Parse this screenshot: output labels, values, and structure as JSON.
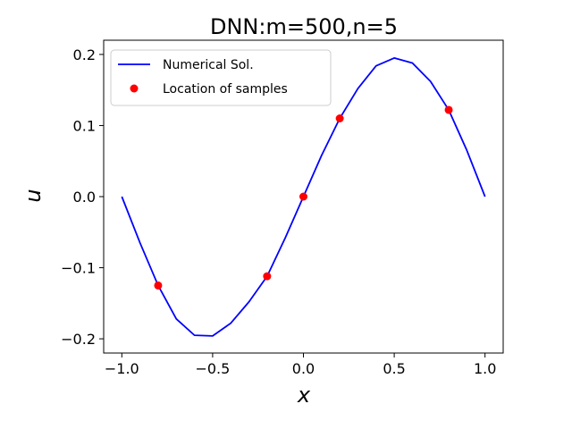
{
  "chart_data": {
    "type": "line",
    "title": "DNN:m=500,n=5",
    "xlabel": "x",
    "ylabel": "u",
    "xlim": [
      -1.1,
      1.1
    ],
    "ylim": [
      -0.22,
      0.22
    ],
    "xticks": [
      -1.0,
      -0.5,
      0.0,
      0.5,
      1.0
    ],
    "xtick_labels": [
      "−1.0",
      "−0.5",
      "0.0",
      "0.5",
      "1.0"
    ],
    "yticks": [
      -0.2,
      -0.1,
      0.0,
      0.1,
      0.2
    ],
    "ytick_labels": [
      "−0.2",
      "−0.1",
      "0.0",
      "0.1",
      "0.2"
    ],
    "grid": false,
    "legend_position": "top-left",
    "series": [
      {
        "name": "Numerical Sol.",
        "kind": "line",
        "color": "#0000ff",
        "x": [
          -1.0,
          -0.9,
          -0.8,
          -0.7,
          -0.6,
          -0.5,
          -0.4,
          -0.3,
          -0.2,
          -0.1,
          0.0,
          0.1,
          0.2,
          0.3,
          0.4,
          0.5,
          0.6,
          0.7,
          0.8,
          0.9,
          1.0
        ],
        "y": [
          0.0,
          -0.065,
          -0.125,
          -0.172,
          -0.195,
          -0.196,
          -0.178,
          -0.148,
          -0.112,
          -0.058,
          0.0,
          0.058,
          0.11,
          0.152,
          0.184,
          0.195,
          0.188,
          0.162,
          0.122,
          0.065,
          0.0
        ]
      },
      {
        "name": "Location of samples",
        "kind": "scatter",
        "color": "#ff0000",
        "x": [
          -0.8,
          -0.2,
          0.0,
          0.2,
          0.8
        ],
        "y": [
          -0.125,
          -0.112,
          0.0,
          0.11,
          0.122
        ]
      }
    ]
  }
}
